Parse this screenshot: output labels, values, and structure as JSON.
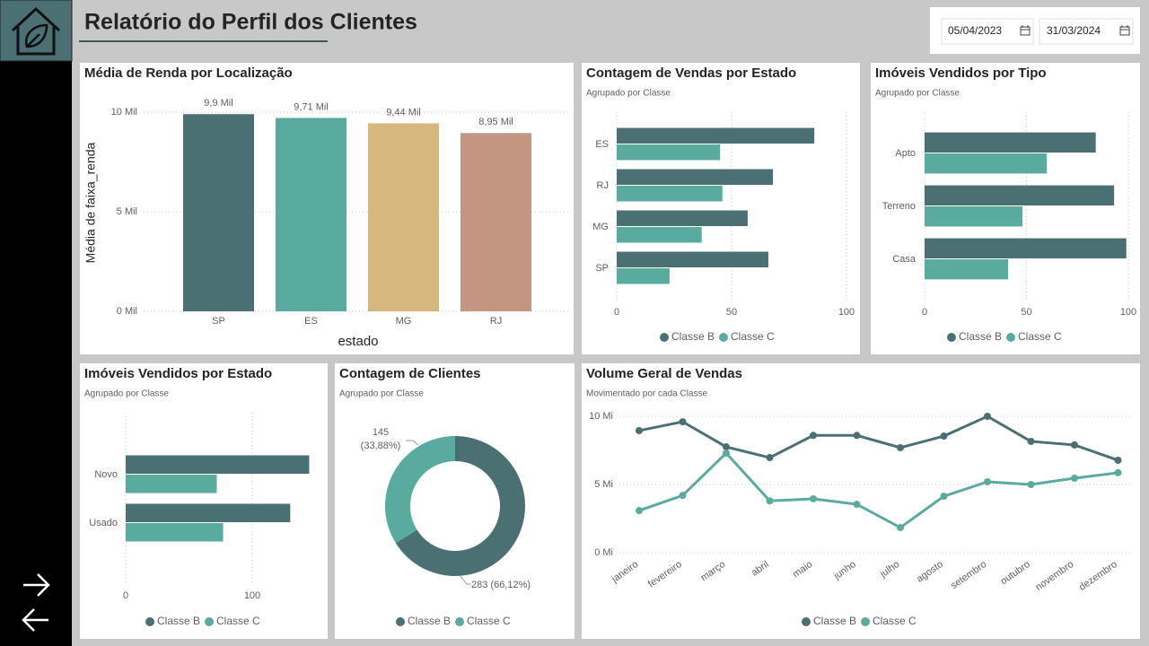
{
  "header": {
    "title": "Relatório do Perfil dos Clientes",
    "date_start": "05/04/2023",
    "date_end": "31/03/2024"
  },
  "chart_data": [
    {
      "type": "bar",
      "title": "Média de Renda por Localização",
      "x_label": "estado",
      "y_label": "Média de faixa_renda",
      "categories": [
        "SP",
        "ES",
        "MG",
        "RJ"
      ],
      "values": [
        9900,
        9710,
        9440,
        8950
      ],
      "value_labels": [
        "9,9 Mil",
        "9,71 Mil",
        "9,44 Mil",
        "8,95 Mil"
      ],
      "colors": [
        "#4a7073",
        "#5aab9f",
        "#d6b87f",
        "#c49682"
      ],
      "ylim": [
        0,
        10000
      ],
      "yticks": [
        {
          "value": 0,
          "label": "0 Mil"
        },
        {
          "value": 5000,
          "label": "5 Mil"
        },
        {
          "value": 10000,
          "label": "10 Mil"
        }
      ],
      "grid": true
    },
    {
      "type": "bar",
      "orientation": "horizontal",
      "title": "Contagem de Vendas por Estado",
      "subtitle": "Agrupado por Classe",
      "categories": [
        "ES",
        "RJ",
        "MG",
        "SP"
      ],
      "series": [
        {
          "name": "Classe B",
          "color": "#4a7073",
          "values": [
            86,
            68,
            57,
            66
          ]
        },
        {
          "name": "Classe C",
          "color": "#5aab9f",
          "values": [
            45,
            46,
            37,
            23
          ]
        }
      ],
      "xlim": [
        0,
        100
      ],
      "xticks": [
        0,
        50,
        100
      ],
      "grid": true
    },
    {
      "type": "bar",
      "orientation": "horizontal",
      "title": "Imóveis Vendidos por Tipo",
      "subtitle": "Agrupado por Classe",
      "categories": [
        "Apto",
        "Terreno",
        "Casa"
      ],
      "series": [
        {
          "name": "Classe B",
          "color": "#4a7073",
          "values": [
            84,
            93,
            99
          ]
        },
        {
          "name": "Classe C",
          "color": "#5aab9f",
          "values": [
            60,
            48,
            41
          ]
        }
      ],
      "xlim": [
        0,
        100
      ],
      "xticks": [
        0,
        50,
        100
      ],
      "grid": true
    },
    {
      "type": "bar",
      "orientation": "horizontal",
      "title": "Imóveis Vendidos por Estado",
      "subtitle": "Agrupado por Classe",
      "categories": [
        "Novo",
        "Usado"
      ],
      "series": [
        {
          "name": "Classe B",
          "color": "#4a7073",
          "values": [
            145,
            130
          ]
        },
        {
          "name": "Classe C",
          "color": "#5aab9f",
          "values": [
            72,
            77
          ]
        }
      ],
      "xlim": [
        0,
        150
      ],
      "xticks": [
        0,
        100
      ],
      "grid": true
    },
    {
      "type": "donut",
      "title": "Contagem de Clientes",
      "subtitle": "Agrupado por Classe",
      "categories": [
        "Classe B",
        "Classe C"
      ],
      "values": [
        283,
        145
      ],
      "value_labels": [
        "283 (66,12%)",
        "145 (33,88%)"
      ],
      "colors": [
        "#4a7073",
        "#5aab9f"
      ]
    },
    {
      "type": "line",
      "title": "Volume Geral de Vendas",
      "subtitle": "Movimentado por cada Classe",
      "categories": [
        "janeiro",
        "fevereiro",
        "março",
        "abril",
        "maio",
        "junho",
        "julho",
        "agosto",
        "setembro",
        "outubro",
        "novembro",
        "dezembro"
      ],
      "series": [
        {
          "name": "Classe B",
          "color": "#4a7073",
          "values": [
            8950000,
            9600000,
            7760000,
            6970000,
            8600000,
            8600000,
            7700000,
            8550000,
            10000000,
            8160000,
            7900000,
            6780000
          ]
        },
        {
          "name": "Classe C",
          "color": "#5aab9f",
          "values": [
            3090000,
            4200000,
            7300000,
            3800000,
            3950000,
            3550000,
            1840000,
            4140000,
            5200000,
            5000000,
            5460000,
            5860000
          ]
        }
      ],
      "ylim": [
        0,
        10000000
      ],
      "yticks": [
        {
          "value": 0,
          "label": "0 Mi"
        },
        {
          "value": 5000000,
          "label": "5 Mi"
        },
        {
          "value": 10000000,
          "label": "10 Mi"
        }
      ],
      "grid": true
    }
  ]
}
